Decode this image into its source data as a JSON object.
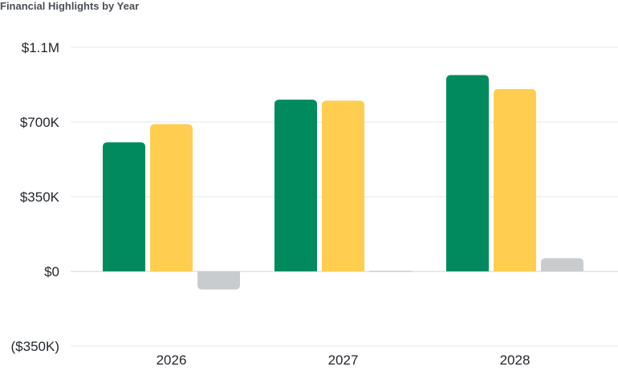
{
  "chart_data": {
    "type": "bar",
    "title": "Financial Highlights by Year",
    "categories": [
      "2026",
      "2027",
      "2028"
    ],
    "series": [
      {
        "values": [
          605000,
          805000,
          920000
        ],
        "color": "#008a5e"
      },
      {
        "values": [
          690000,
          800000,
          855000
        ],
        "color": "#ffcd50"
      },
      {
        "values": [
          -85000,
          3000,
          62000
        ],
        "color": "#c9cccf"
      }
    ],
    "y_ticks": [
      {
        "value": 1050000,
        "label": "$1.1M"
      },
      {
        "value": 700000,
        "label": "$700K"
      },
      {
        "value": 350000,
        "label": "$350K"
      },
      {
        "value": 0,
        "label": "$0"
      },
      {
        "value": -350000,
        "label": "($350K)"
      }
    ],
    "ylim": [
      -350000,
      1050000
    ],
    "grid": true,
    "legend": "none"
  }
}
